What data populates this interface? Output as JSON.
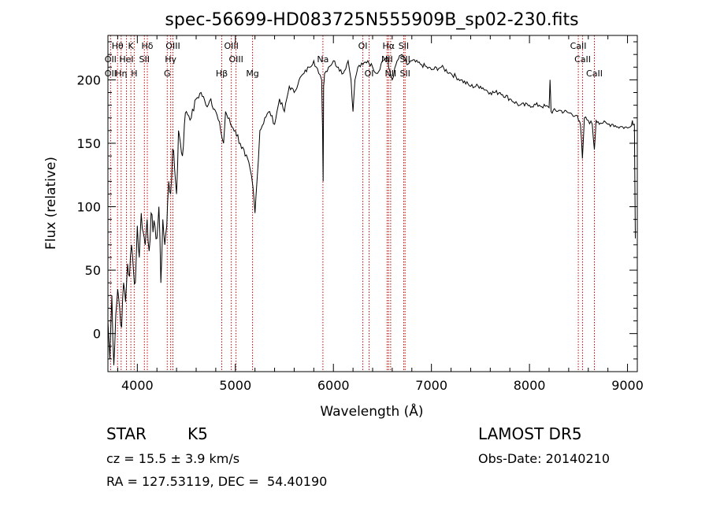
{
  "chart_data": {
    "type": "line",
    "title": "spec-56699-HD083725N555909B_sp02-230.fits",
    "xlabel": "Wavelength (Å)",
    "ylabel": "Flux (relative)",
    "xlim": [
      3700,
      9100
    ],
    "ylim": [
      -30,
      235
    ],
    "xticks": [
      4000,
      5000,
      6000,
      7000,
      8000,
      9000
    ],
    "yticks": [
      0,
      50,
      100,
      150,
      200
    ],
    "grid": false,
    "series": [
      {
        "x": [
          3700,
          3720,
          3740,
          3760,
          3780,
          3800,
          3820,
          3840,
          3860,
          3880,
          3900,
          3920,
          3940,
          3960,
          3980,
          4000,
          4020,
          4040,
          4060,
          4080,
          4100,
          4120,
          4140,
          4160,
          4180,
          4200,
          4220,
          4240,
          4260,
          4280,
          4300,
          4320,
          4340,
          4360,
          4380,
          4400,
          4420,
          4440,
          4460,
          4480,
          4500,
          4550,
          4600,
          4650,
          4700,
          4750,
          4800,
          4850,
          4880,
          4900,
          4950,
          5000,
          5050,
          5100,
          5150,
          5180,
          5200,
          5220,
          5250,
          5300,
          5350,
          5400,
          5450,
          5500,
          5550,
          5600,
          5650,
          5700,
          5750,
          5800,
          5850,
          5880,
          5890,
          5895,
          5900,
          5910,
          5950,
          6000,
          6050,
          6100,
          6150,
          6180,
          6200,
          6220,
          6250,
          6300,
          6350,
          6400,
          6450,
          6500,
          6550,
          6563,
          6600,
          6650,
          6700,
          6750,
          6800,
          6900,
          7000,
          7100,
          7200,
          7300,
          7400,
          7500,
          7600,
          7700,
          7800,
          7900,
          8000,
          8100,
          8200,
          8210,
          8220,
          8300,
          8400,
          8480,
          8500,
          8520,
          8540,
          8560,
          8600,
          8640,
          8662,
          8680,
          8700,
          8750,
          8800,
          8850,
          8900,
          8950,
          9000,
          9030,
          9050,
          9060,
          9070,
          9080
        ],
        "values": [
          10,
          -20,
          30,
          -25,
          15,
          35,
          20,
          5,
          40,
          25,
          55,
          45,
          70,
          50,
          40,
          85,
          60,
          95,
          80,
          70,
          90,
          65,
          95,
          80,
          85,
          75,
          100,
          40,
          90,
          70,
          85,
          120,
          110,
          145,
          130,
          110,
          160,
          150,
          140,
          165,
          175,
          170,
          185,
          190,
          180,
          185,
          175,
          160,
          150,
          175,
          165,
          160,
          150,
          140,
          130,
          115,
          95,
          120,
          160,
          170,
          175,
          165,
          185,
          175,
          195,
          190,
          200,
          205,
          210,
          215,
          205,
          200,
          160,
          120,
          195,
          205,
          210,
          215,
          210,
          205,
          215,
          200,
          175,
          200,
          210,
          212,
          215,
          210,
          205,
          215,
          218,
          210,
          200,
          215,
          220,
          212,
          215,
          212,
          208,
          210,
          205,
          200,
          195,
          195,
          190,
          190,
          185,
          180,
          180,
          180,
          178,
          200,
          175,
          176,
          174,
          172,
          168,
          165,
          138,
          170,
          168,
          165,
          145,
          168,
          167,
          166,
          165,
          165,
          163,
          163,
          162,
          163,
          168,
          165,
          165,
          75
        ]
      }
    ],
    "lines": [
      {
        "name": "Hθ",
        "wavelength": 3798,
        "row": 1
      },
      {
        "name": "OII",
        "wavelength": 3727,
        "row": 2
      },
      {
        "name": "OII",
        "wavelength": 3727,
        "row": 3
      },
      {
        "name": "Hη",
        "wavelength": 3835,
        "row": 3
      },
      {
        "name": "HeI",
        "wavelength": 3889,
        "row": 2
      },
      {
        "name": "K",
        "wavelength": 3934,
        "row": 1
      },
      {
        "name": "H",
        "wavelength": 3968,
        "row": 3
      },
      {
        "name": "SII",
        "wavelength": 4072,
        "row": 2
      },
      {
        "name": "Hδ",
        "wavelength": 4102,
        "row": 1
      },
      {
        "name": "OIII",
        "wavelength": 4363,
        "row": 1
      },
      {
        "name": "Hγ",
        "wavelength": 4340,
        "row": 2
      },
      {
        "name": "G",
        "wavelength": 4305,
        "row": 3
      },
      {
        "name": "Hβ",
        "wavelength": 4861,
        "row": 3
      },
      {
        "name": "OIII",
        "wavelength": 4959,
        "row": 1
      },
      {
        "name": "OIII",
        "wavelength": 5007,
        "row": 2
      },
      {
        "name": "Mg",
        "wavelength": 5175,
        "row": 3
      },
      {
        "name": "Na",
        "wavelength": 5893,
        "row": 2
      },
      {
        "name": "OI",
        "wavelength": 6300,
        "row": 1
      },
      {
        "name": "OI",
        "wavelength": 6364,
        "row": 3
      },
      {
        "name": "Hα",
        "wavelength": 6563,
        "row": 1
      },
      {
        "name": "NII",
        "wavelength": 6548,
        "row": 2
      },
      {
        "name": "NII",
        "wavelength": 6584,
        "row": 3
      },
      {
        "name": "SII",
        "wavelength": 6717,
        "row": 1
      },
      {
        "name": "SII",
        "wavelength": 6731,
        "row": 2
      },
      {
        "name": "SII",
        "wavelength": 6731,
        "row": 3
      },
      {
        "name": "CaII",
        "wavelength": 8498,
        "row": 1
      },
      {
        "name": "CaII",
        "wavelength": 8542,
        "row": 2
      },
      {
        "name": "CaII",
        "wavelength": 8662,
        "row": 3
      }
    ],
    "line_color": "#cc0000"
  },
  "info": {
    "obj_type": "STAR",
    "obj_class": "K5",
    "survey": "LAMOST DR5",
    "cz": "cz = 15.5 ± 3.9 km/s",
    "obs_date": "Obs-Date: 20140210",
    "radec": "RA = 127.53119, DEC =  54.40190"
  }
}
